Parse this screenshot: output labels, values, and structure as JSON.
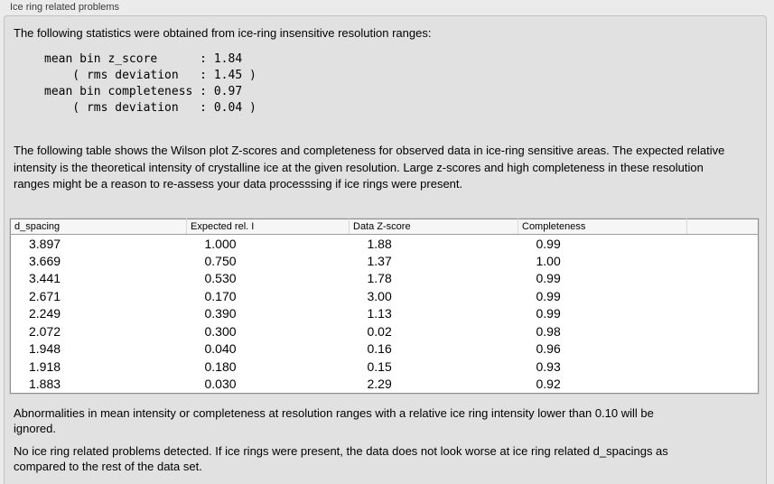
{
  "panel": {
    "title": "Ice ring related problems",
    "intro": "The following statistics were obtained from ice-ring insensitive resolution ranges:",
    "stats_block": "mean bin z_score      : 1.84\n    ( rms deviation   : 1.45 )\nmean bin completeness : 0.97\n    ( rms deviation   : 0.04 )",
    "stats": {
      "mean_bin_z_score": "1.84",
      "z_score_rms_deviation": "1.45",
      "mean_bin_completeness": "0.97",
      "completeness_rms_deviation": "0.04"
    },
    "table_intro": "The following table shows the Wilson plot Z-scores and completeness for observed data in ice-ring sensitive areas. The expected relative intensity is the theoretical intensity of crystalline ice at the given resolution. Large z-scores and high completeness in these resolution ranges might be a reason to re-assess your data processsing if ice rings were present.",
    "note_ignore": "Abnormalities in mean intensity or completeness at resolution ranges with a relative ice ring intensity lower than 0.10 will be ignored.",
    "conclusion": "No ice ring related problems detected. If ice rings were present, the data does not look worse at ice ring related d_spacings as compared to the rest of the data set."
  },
  "table": {
    "columns": [
      "d_spacing",
      "Expected rel. I",
      "Data Z-score",
      "Completeness",
      ""
    ],
    "rows": [
      [
        "3.897",
        "1.000",
        "1.88",
        "0.99"
      ],
      [
        "3.669",
        "0.750",
        "1.37",
        "1.00"
      ],
      [
        "3.441",
        "0.530",
        "1.78",
        "0.99"
      ],
      [
        "2.671",
        "0.170",
        "3.00",
        "0.99"
      ],
      [
        "2.249",
        "0.390",
        "1.13",
        "0.99"
      ],
      [
        "2.072",
        "0.300",
        "0.02",
        "0.98"
      ],
      [
        "1.948",
        "0.040",
        "0.16",
        "0.96"
      ],
      [
        "1.918",
        "0.180",
        "0.15",
        "0.93"
      ],
      [
        "1.883",
        "0.030",
        "2.29",
        "0.92"
      ]
    ]
  },
  "colors": {
    "panel_background": "#e1e1e1",
    "outer_background": "#ebebeb",
    "table_background": "#ffffff",
    "table_header_background": "#f6f6f6",
    "border": "#c2c2c2",
    "text": "#000000"
  }
}
